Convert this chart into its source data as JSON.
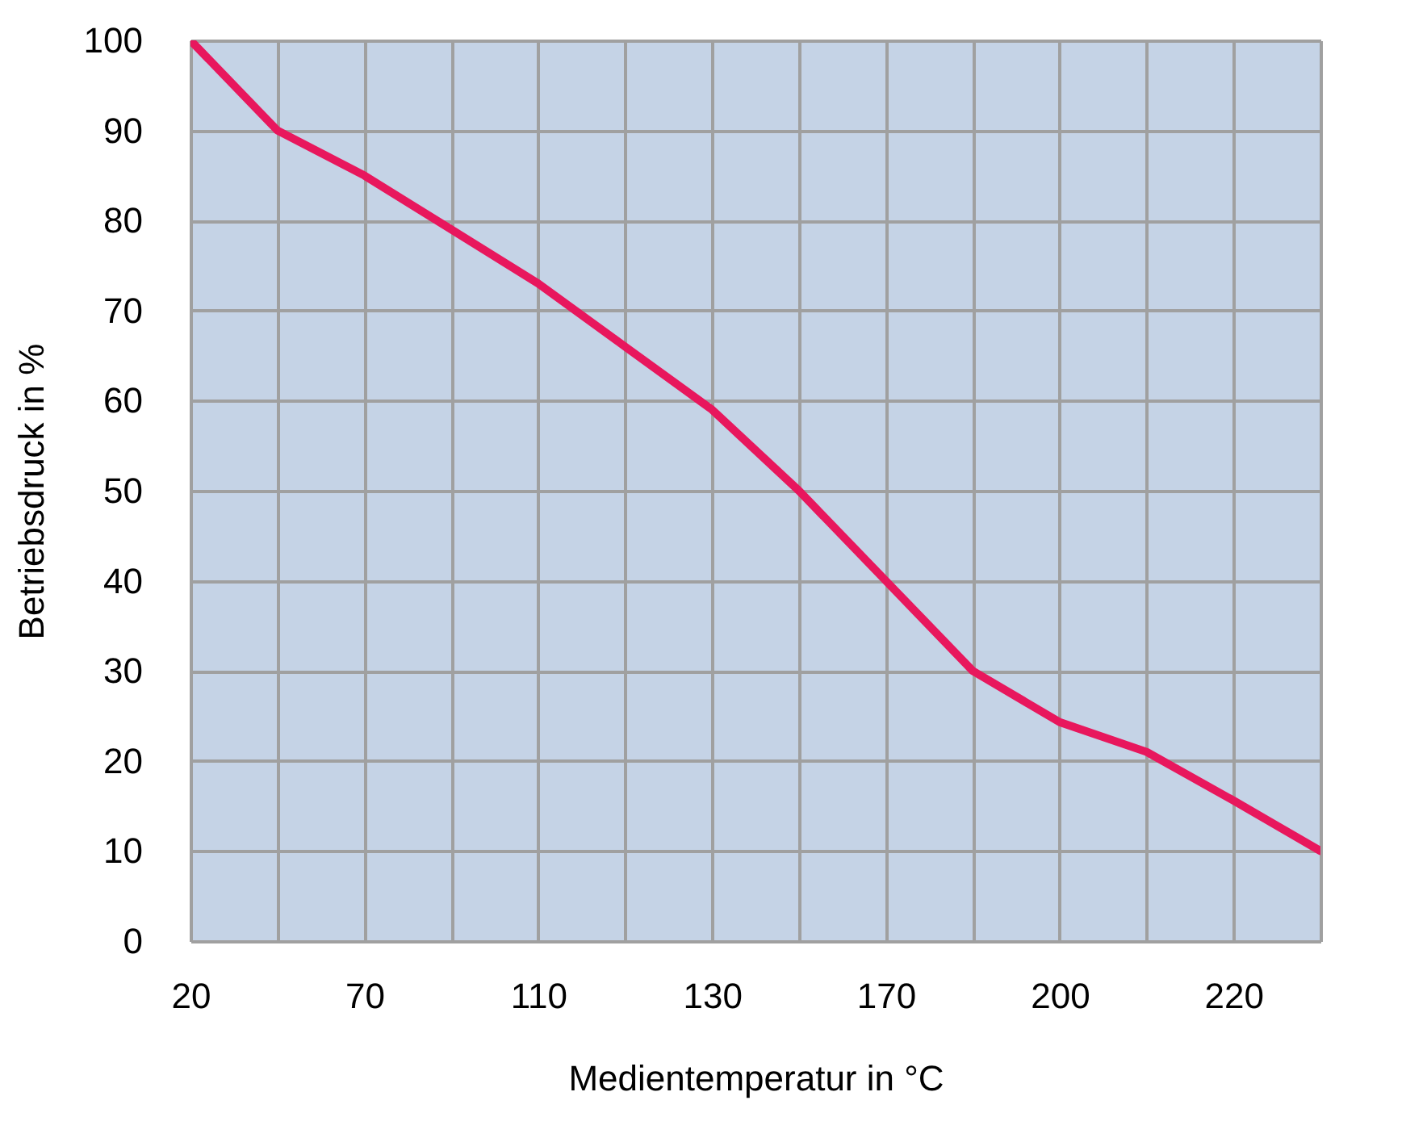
{
  "chart_data": {
    "type": "line",
    "xlabel": "Medientemperatur in °C",
    "ylabel": "Betriebsdruck in %",
    "categories": [
      "20",
      null,
      "70",
      null,
      "110",
      null,
      "130",
      null,
      "170",
      null,
      "200",
      null,
      "220",
      null
    ],
    "series": [
      {
        "color": "#e8175d",
        "values": [
          100,
          90,
          85,
          79,
          73,
          66,
          59,
          50,
          40,
          30,
          24.3,
          21,
          15.6,
          10
        ]
      }
    ],
    "ylim": [
      0,
      100
    ],
    "yticks": [
      0,
      10,
      20,
      30,
      40,
      50,
      60,
      70,
      80,
      90,
      100
    ],
    "grid": true
  }
}
